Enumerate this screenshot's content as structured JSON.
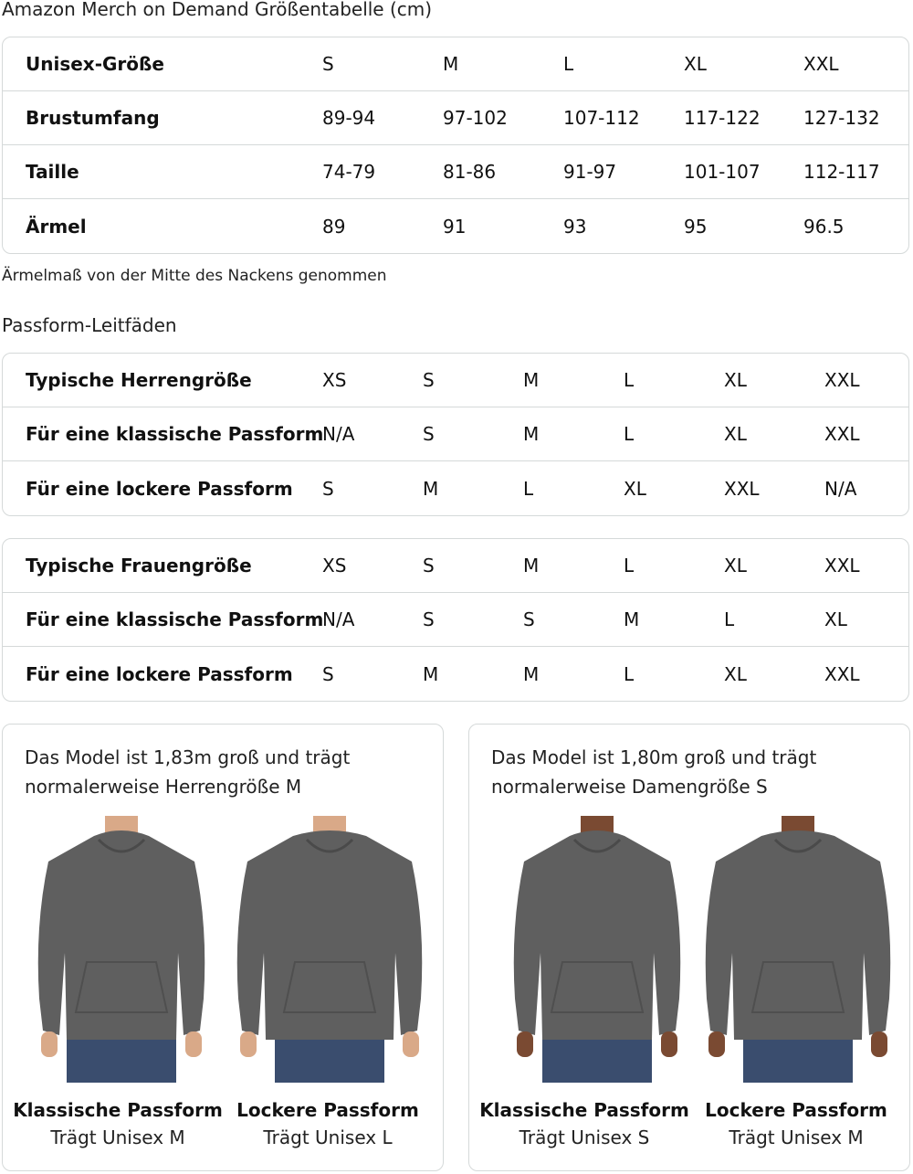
{
  "title": "Amazon Merch on Demand Größentabelle (cm)",
  "size_table": {
    "rows": [
      {
        "label": "Unisex-Größe",
        "values": [
          "S",
          "M",
          "L",
          "XL",
          "XXL"
        ]
      },
      {
        "label": "Brustumfang",
        "values": [
          "89-94",
          "97-102",
          "107-112",
          "117-122",
          "127-132"
        ]
      },
      {
        "label": "Taille",
        "values": [
          "74-79",
          "81-86",
          "91-97",
          "101-107",
          "112-117"
        ]
      },
      {
        "label": "Ärmel",
        "values": [
          "89",
          "91",
          "93",
          "95",
          "96.5"
        ]
      }
    ]
  },
  "note": "Ärmelmaß von der Mitte des Nackens genommen",
  "fit_title": "Passform-Leitfäden",
  "men_table": {
    "rows": [
      {
        "label": "Typische Herrengröße",
        "values": [
          "XS",
          "S",
          "M",
          "L",
          "XL",
          "XXL"
        ]
      },
      {
        "label": "Für eine klassische Passform",
        "values": [
          "N/A",
          "S",
          "M",
          "L",
          "XL",
          "XXL"
        ]
      },
      {
        "label": "Für eine lockere Passform",
        "values": [
          "S",
          "M",
          "L",
          "XL",
          "XXL",
          "N/A"
        ]
      }
    ]
  },
  "women_table": {
    "rows": [
      {
        "label": "Typische Frauengröße",
        "values": [
          "XS",
          "S",
          "M",
          "L",
          "XL",
          "XXL"
        ]
      },
      {
        "label": "Für eine klassische Passform",
        "values": [
          "N/A",
          "S",
          "S",
          "M",
          "L",
          "XL"
        ]
      },
      {
        "label": "Für eine lockere Passform",
        "values": [
          "S",
          "M",
          "M",
          "L",
          "XL",
          "XXL"
        ]
      }
    ]
  },
  "cards": [
    {
      "desc": "Das Model ist 1,83m groß und trägt normalerweise Herrengröße M",
      "figures": [
        {
          "title": "Klassische Passform",
          "sub": "Trägt Unisex M"
        },
        {
          "title": "Lockere Passform",
          "sub": "Trägt Unisex L"
        }
      ]
    },
    {
      "desc": "Das Model ist 1,80m groß und trägt normalerweise Damengröße S",
      "figures": [
        {
          "title": "Klassische Passform",
          "sub": "Trägt Unisex S"
        },
        {
          "title": "Lockere Passform",
          "sub": "Trägt Unisex M"
        }
      ]
    }
  ],
  "colors": {
    "hoodie": "#5f5f5f",
    "jeans": "#3a4d6e",
    "skin_men": "#d9a988",
    "skin_women": "#7a4a32",
    "border": "#d5d9d9"
  }
}
